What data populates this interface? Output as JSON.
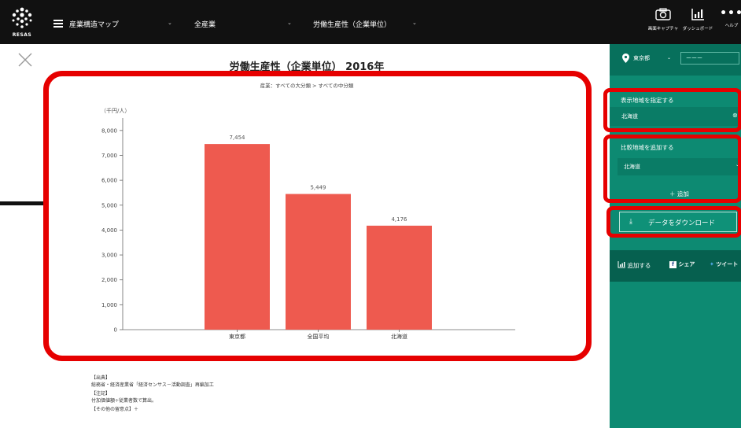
{
  "app": {
    "logo_text": "RESAS"
  },
  "topbar": {
    "map_label": "産業構造マップ",
    "industry": "全産業",
    "indicator": "労働生産性（企業単位）",
    "tools": [
      {
        "label": "画面キャプチャ",
        "icon": "camera-icon"
      },
      {
        "label": "ダッシュボード",
        "icon": "dashboard-icon"
      },
      {
        "label": "ヘルプ",
        "icon": "more-icon"
      }
    ]
  },
  "main": {
    "title": "労働生産性（企業単位） 2016年",
    "subtitle": "産業：すべての大分類 > すべての中分類"
  },
  "chart_data": {
    "type": "bar",
    "title": "労働生産性（企業単位） 2016年",
    "unit_label": "（千円/人）",
    "categories": [
      "東京都",
      "全国平均",
      "北海道"
    ],
    "values": [
      7454,
      5449,
      4176
    ],
    "value_labels": [
      "7,454",
      "5,449",
      "4,176"
    ],
    "yticks": [
      0,
      1000,
      2000,
      3000,
      4000,
      5000,
      6000,
      7000,
      8000
    ],
    "ytick_labels": [
      "0",
      "1,000",
      "2,000",
      "3,000",
      "4,000",
      "5,000",
      "6,000",
      "7,000",
      "8,000"
    ],
    "ylim": [
      0,
      8500
    ],
    "bar_color": "#ee5a4f"
  },
  "notes": {
    "source_head": "【出典】",
    "source_text": "総務省・経済産業省「経済センサス－活動調査」再編加工",
    "note_head": "【注記】",
    "note_text": "付加価値額÷従業者数で算出。",
    "other": "【その他の留意点】＋"
  },
  "sidebar": {
    "prefecture": "東京都",
    "city": "ーーー",
    "display_title": "表示地域を指定する",
    "display_region": "北海道",
    "compare_title": "比較地域を追加する",
    "compare_region": "北海道",
    "add_label": "＋ 追加",
    "download_label": "データをダウンロード",
    "share_add": "追加する",
    "facebook": "シェア",
    "twitter": "ツイート"
  },
  "colors": {
    "topbar": "#111111",
    "sidebar": "#0d8a72",
    "highlight": "#e60000"
  }
}
